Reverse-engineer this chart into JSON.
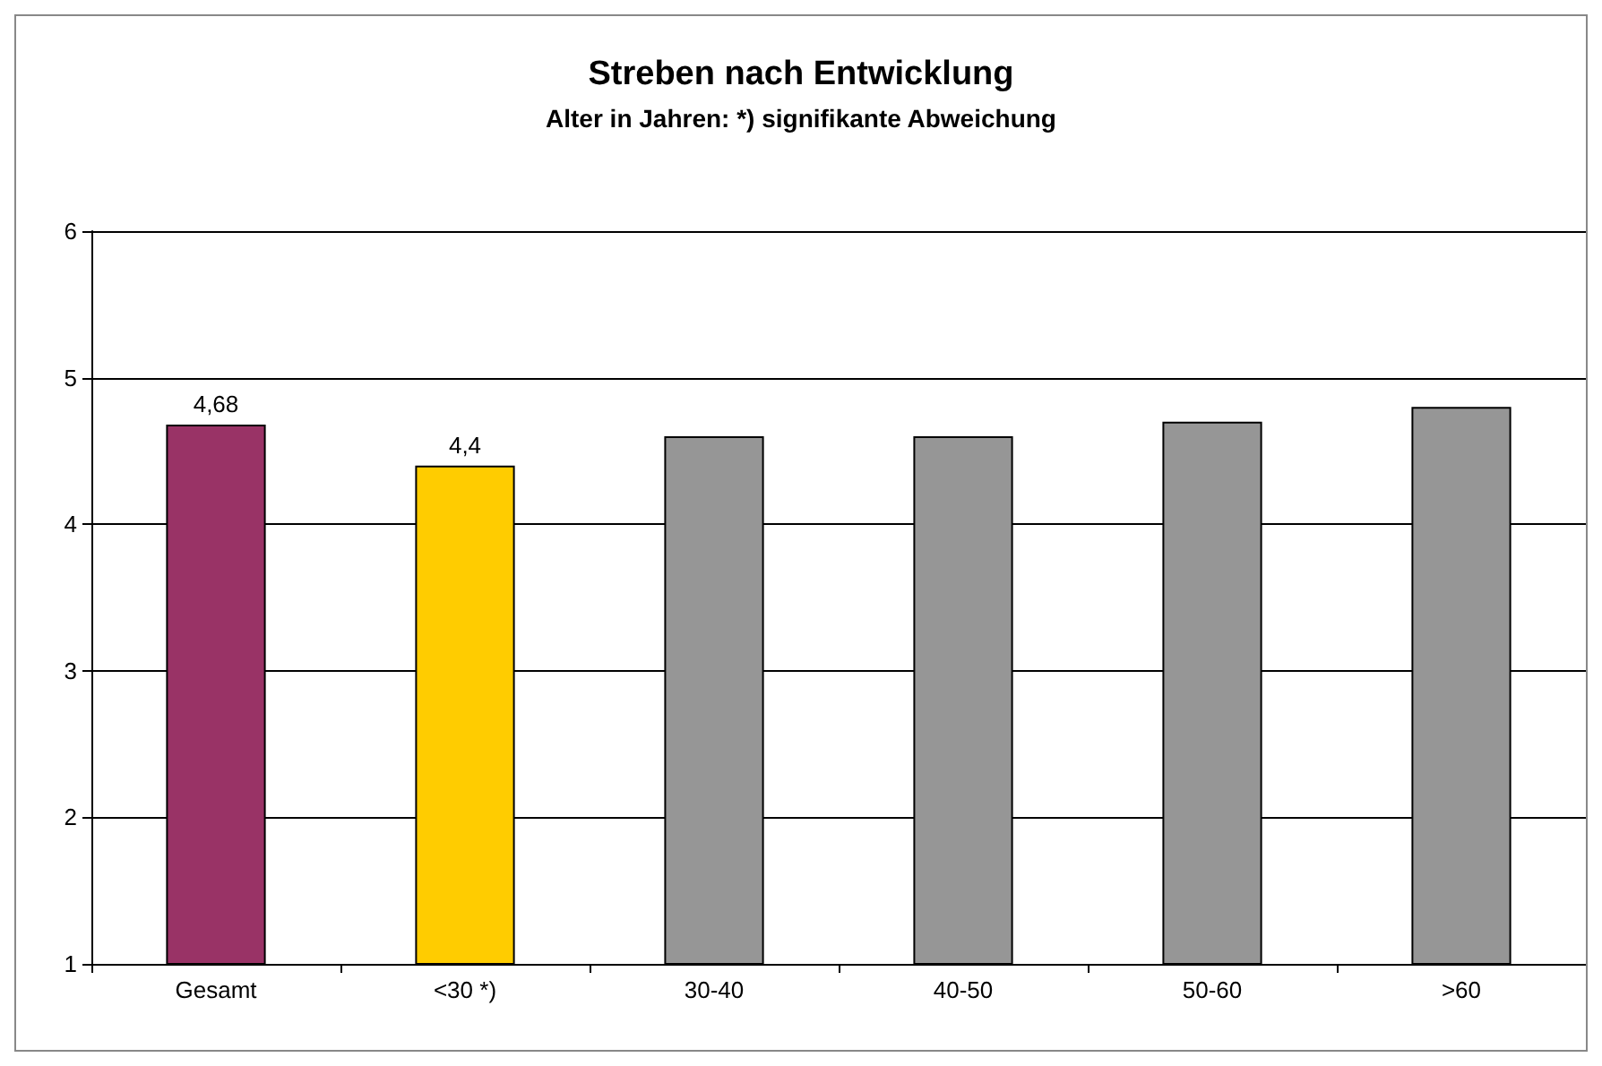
{
  "chart_data": {
    "type": "bar",
    "title": "Streben nach Entwicklung",
    "subtitle": "Alter in Jahren: *) signifikante Abweichung",
    "categories": [
      "Gesamt",
      "<30 *)",
      "30-40",
      "40-50",
      "50-60",
      ">60"
    ],
    "values": [
      4.68,
      4.4,
      4.6,
      4.6,
      4.7,
      4.8
    ],
    "colors": [
      "#993366",
      "#ffcc00",
      "#969696",
      "#969696",
      "#969696",
      "#969696"
    ],
    "value_labels": [
      "4,68",
      "4,4",
      null,
      null,
      null,
      null
    ],
    "ylim": [
      1,
      6
    ],
    "yticks": [
      1,
      2,
      3,
      4,
      5,
      6
    ],
    "grid": "y"
  }
}
